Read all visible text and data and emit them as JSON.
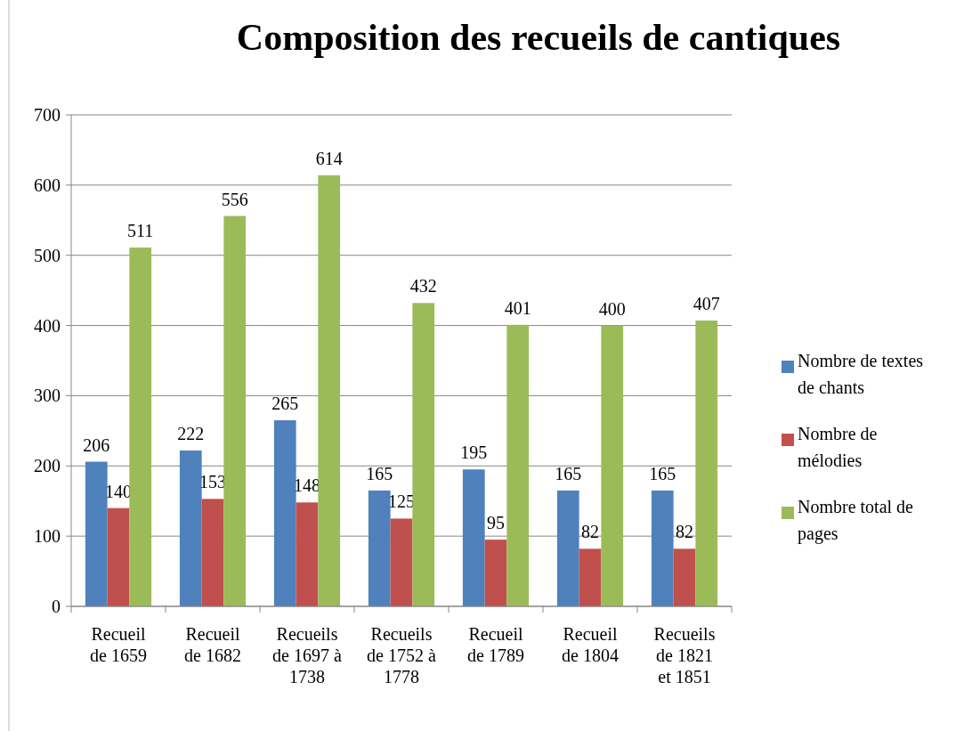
{
  "chart_data": {
    "type": "bar",
    "title": "Composition des recueils de cantiques",
    "categories": [
      "Recueil de 1659",
      "Recueil de 1682",
      "Recueils de 1697 à 1738",
      "Recueils de 1752 à 1778",
      "Recueil de 1789",
      "Recueil de 1804",
      "Recueils de 1821 et 1851"
    ],
    "series": [
      {
        "name": "Nombre de textes de chants",
        "color": "#4f81bd",
        "values": [
          206,
          222,
          265,
          165,
          195,
          165,
          165
        ]
      },
      {
        "name": "Nombre de mélodies",
        "color": "#c0504d",
        "values": [
          140,
          153,
          148,
          125,
          95,
          82,
          82
        ]
      },
      {
        "name": "Nombre total de pages",
        "color": "#9bbb59",
        "values": [
          511,
          556,
          614,
          432,
          401,
          400,
          407
        ]
      }
    ],
    "ylim": [
      0,
      700
    ],
    "yticks": [
      0,
      100,
      200,
      300,
      400,
      500,
      600,
      700
    ],
    "grid": "y",
    "legend": "right",
    "data_labels": true
  }
}
